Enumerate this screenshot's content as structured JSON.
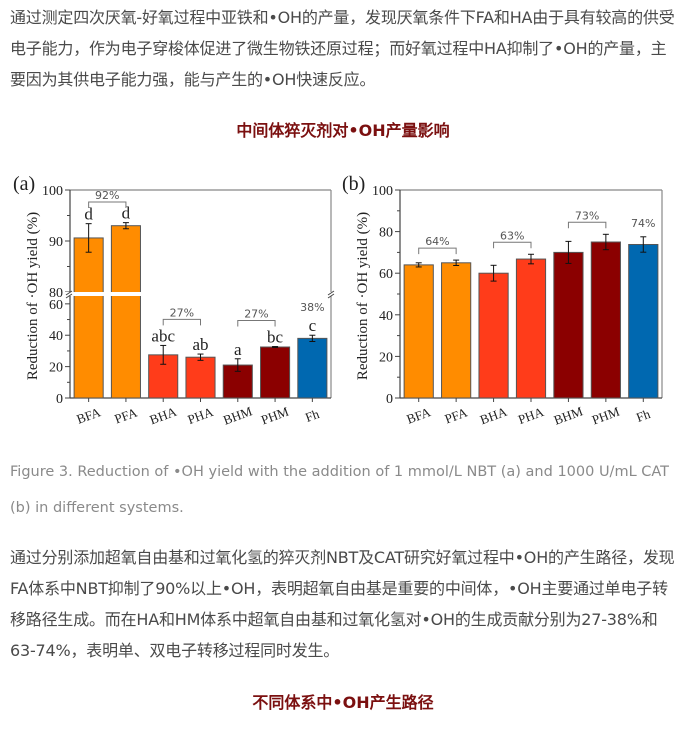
{
  "paragraph1": "通过测定四次厌氧-好氧过程中亚铁和•OH的产量，发现厌氧条件下FA和HA由于具有较高的供受电子能力，作为电子穿梭体促进了微生物铁还原过程；而好氧过程中HA抑制了•OH的产量，主要因为其供电子能力强，能与产生的•OH快速反应。",
  "heading1": "中间体猝灭剂对•OH产量影响",
  "caption": "Figure 3. Reduction of •OH yield with the addition of 1 mmol/L NBT (a) and 1000 U/mL CAT (b) in different systems.",
  "paragraph2": "通过分别添加超氧自由基和过氧化氢的猝灭剂NBT及CAT研究好氧过程中•OH的产生路径，发现FA体系中NBT抑制了90%以上•OH，表明超氧自由基是重要的中间体，•OH主要通过单电子转移路径生成。而在HA和HM体系中超氧自由基和过氧化氢对•OH的生成贡献分别为27-38%和63-74%，表明单、双电子转移过程同时发生。",
  "heading2": "不同体系中•OH产生路径",
  "colors": {
    "FA": "#ff8c00",
    "HA": "#ff3c1a",
    "HM": "#8b0000",
    "Fh": "#0068b0",
    "heading": "#7b1010"
  },
  "chart_data": [
    {
      "type": "bar",
      "panel_label": "(a)",
      "ylabel": "Reduction of ·OH yield (%)",
      "xlabel": "",
      "categories": [
        "BFA",
        "PFA",
        "BHA",
        "PHA",
        "BHM",
        "PHM",
        "Fh"
      ],
      "values": [
        90.6,
        93.0,
        27.5,
        26.0,
        21.0,
        32.5,
        38.0
      ],
      "errors": [
        2.8,
        0.6,
        6.0,
        2.0,
        4.0,
        0.3,
        2.0
      ],
      "significance_letters": [
        "d",
        "d",
        "abc",
        "ab",
        "a",
        "bc",
        "c"
      ],
      "groups": [
        "FA",
        "FA",
        "HA",
        "HA",
        "HM",
        "HM",
        "Fh"
      ],
      "axis_break": [
        65,
        80
      ],
      "ylim": [
        0,
        100
      ],
      "yticks_lower": [
        0,
        20,
        40,
        60
      ],
      "yticks_upper": [
        80,
        90,
        100
      ],
      "bracket_annotations": [
        {
          "from": "BFA",
          "to": "PFA",
          "label": "92%"
        },
        {
          "from": "BHA",
          "to": "PHA",
          "label": "27%"
        },
        {
          "from": "BHM",
          "to": "PHM",
          "label": "27%"
        },
        {
          "from": "Fh",
          "to": "Fh",
          "label": "38%"
        }
      ]
    },
    {
      "type": "bar",
      "panel_label": "(b)",
      "ylabel": "Reduction of ·OH yield (%)",
      "xlabel": "",
      "categories": [
        "BFA",
        "PFA",
        "BHA",
        "PHA",
        "BHM",
        "PHM",
        "Fh"
      ],
      "values": [
        64.0,
        65.0,
        60.0,
        66.8,
        70.0,
        75.0,
        73.8
      ],
      "errors": [
        1.0,
        1.3,
        3.8,
        2.3,
        5.3,
        3.7,
        3.7
      ],
      "groups": [
        "FA",
        "FA",
        "HA",
        "HA",
        "HM",
        "HM",
        "Fh"
      ],
      "ylim": [
        0,
        100
      ],
      "yticks": [
        0,
        20,
        40,
        60,
        80,
        100
      ],
      "bracket_annotations": [
        {
          "from": "BFA",
          "to": "PFA",
          "label": "64%"
        },
        {
          "from": "BHA",
          "to": "PHA",
          "label": "63%"
        },
        {
          "from": "BHM",
          "to": "PHM",
          "label": "73%"
        },
        {
          "from": "Fh",
          "to": "Fh",
          "label": "74%"
        }
      ]
    }
  ]
}
